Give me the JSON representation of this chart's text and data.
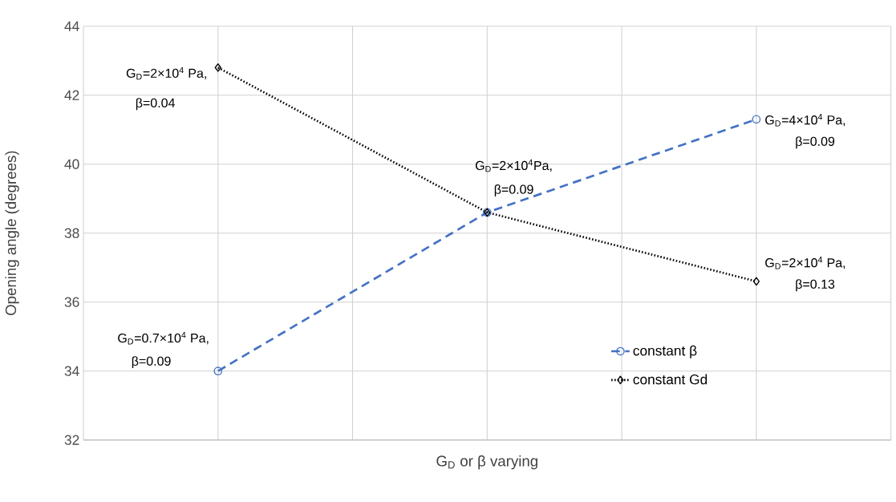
{
  "chart_data": {
    "type": "line",
    "xlabel": "G$_{D}$ or β varying",
    "ylabel": "Opening angle (degrees)",
    "categories": [
      null,
      null,
      null
    ],
    "ylim": [
      32,
      44
    ],
    "yticks": [
      32,
      34,
      36,
      38,
      40,
      42,
      44
    ],
    "grid": true,
    "legend": "bottom right",
    "series": [
      {
        "name": "constant β",
        "color": "#4472c4",
        "values": [
          34.0,
          38.6,
          41.3
        ],
        "marker": "circle",
        "line_style": "dashed"
      },
      {
        "name": "constant Gd",
        "color": "#000000",
        "values": [
          42.8,
          38.6,
          36.6
        ],
        "marker": "diamond",
        "line_style": "dotted"
      }
    ],
    "annotations": [
      "G$_{D}$=2×10$^{4}$ Pa,",
      "β=0.04",
      "G$_{D}$=4×10$^{4}$ Pa,",
      "β=0.09",
      "G$_{D}$=2×10$^{4}$Pa,",
      "β=0.09",
      "G$_{D}$=2×10$^{4}$ Pa,",
      "β=0.13",
      "G$_{D}$=0.7×10$^{4}$ Pa,",
      "β=0.09"
    ]
  }
}
